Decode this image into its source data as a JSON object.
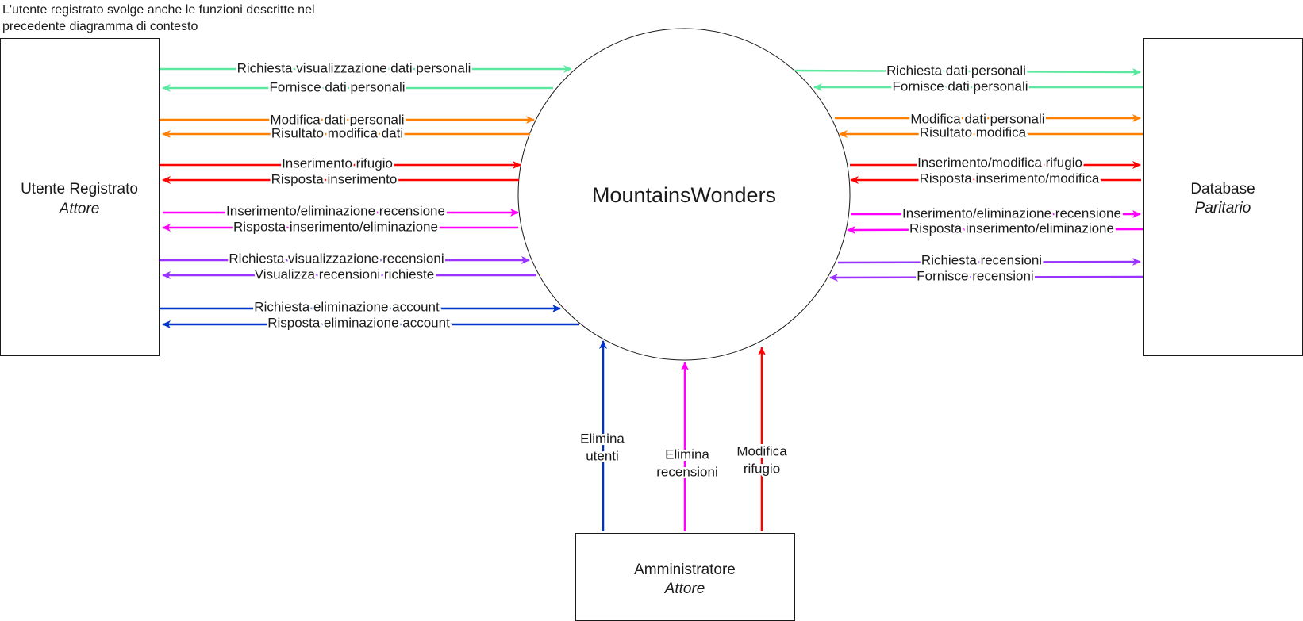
{
  "note": "L'utente registrato svolge anche le funzioni descritte nel precedente diagramma di contesto",
  "process": {
    "name": "MountainsWonders"
  },
  "entities": {
    "user": {
      "name": "Utente Registrato",
      "type": "Attore"
    },
    "database": {
      "name": "Database",
      "type": "Paritario"
    },
    "admin": {
      "name": "Amministratore",
      "type": "Attore"
    }
  },
  "colors": {
    "green": "#5de8a0",
    "orange": "#ff8000",
    "red": "#ff0000",
    "magenta": "#ff00ff",
    "purple": "#9933ff",
    "blue": "#0033cc"
  },
  "left_flows": [
    {
      "label": "Richiesta visualizzazione dati personali",
      "direction": "to-process",
      "color": "green"
    },
    {
      "label": "Fornisce dati personali",
      "direction": "to-entity",
      "color": "green"
    },
    {
      "label": "Modifica dati personali",
      "direction": "to-process",
      "color": "orange"
    },
    {
      "label": "Risultato modifica dati",
      "direction": "to-entity",
      "color": "orange"
    },
    {
      "label": "Inserimento rifugio",
      "direction": "to-process",
      "color": "red"
    },
    {
      "label": "Risposta inserimento",
      "direction": "to-entity",
      "color": "red"
    },
    {
      "label": "Inserimento/eliminazione recensione",
      "direction": "to-process",
      "color": "magenta"
    },
    {
      "label": "Risposta inserimento/eliminazione",
      "direction": "to-entity",
      "color": "magenta"
    },
    {
      "label": "Richiesta visualizzazione recensioni",
      "direction": "to-process",
      "color": "purple"
    },
    {
      "label": "Visualizza recensioni richieste",
      "direction": "to-entity",
      "color": "purple"
    },
    {
      "label": "Richiesta eliminazione account",
      "direction": "to-process",
      "color": "blue"
    },
    {
      "label": "Risposta eliminazione account",
      "direction": "to-entity",
      "color": "blue"
    }
  ],
  "right_flows": [
    {
      "label": "Richiesta dati personali",
      "direction": "to-entity",
      "color": "green"
    },
    {
      "label": "Fornisce dati personali",
      "direction": "to-process",
      "color": "green"
    },
    {
      "label": "Modifica dati personali",
      "direction": "to-entity",
      "color": "orange"
    },
    {
      "label": "Risultato modifica",
      "direction": "to-process",
      "color": "orange"
    },
    {
      "label": "Inserimento/modifica rifugio",
      "direction": "to-entity",
      "color": "red"
    },
    {
      "label": "Risposta inserimento/modifica",
      "direction": "to-process",
      "color": "red"
    },
    {
      "label": "Inserimento/eliminazione recensione",
      "direction": "to-entity",
      "color": "magenta"
    },
    {
      "label": "Risposta inserimento/eliminazione",
      "direction": "to-process",
      "color": "magenta"
    },
    {
      "label": "Richiesta recensioni",
      "direction": "to-entity",
      "color": "purple"
    },
    {
      "label": "Fornisce recensioni",
      "direction": "to-process",
      "color": "purple"
    }
  ],
  "admin_flows": [
    {
      "label_lines": [
        "Elimina",
        "utenti"
      ],
      "direction": "to-process",
      "color": "blue"
    },
    {
      "label_lines": [
        "Elimina",
        "recensioni"
      ],
      "direction": "to-process",
      "color": "magenta"
    },
    {
      "label_lines": [
        "Modifica",
        "rifugio"
      ],
      "direction": "to-process",
      "color": "red"
    }
  ]
}
